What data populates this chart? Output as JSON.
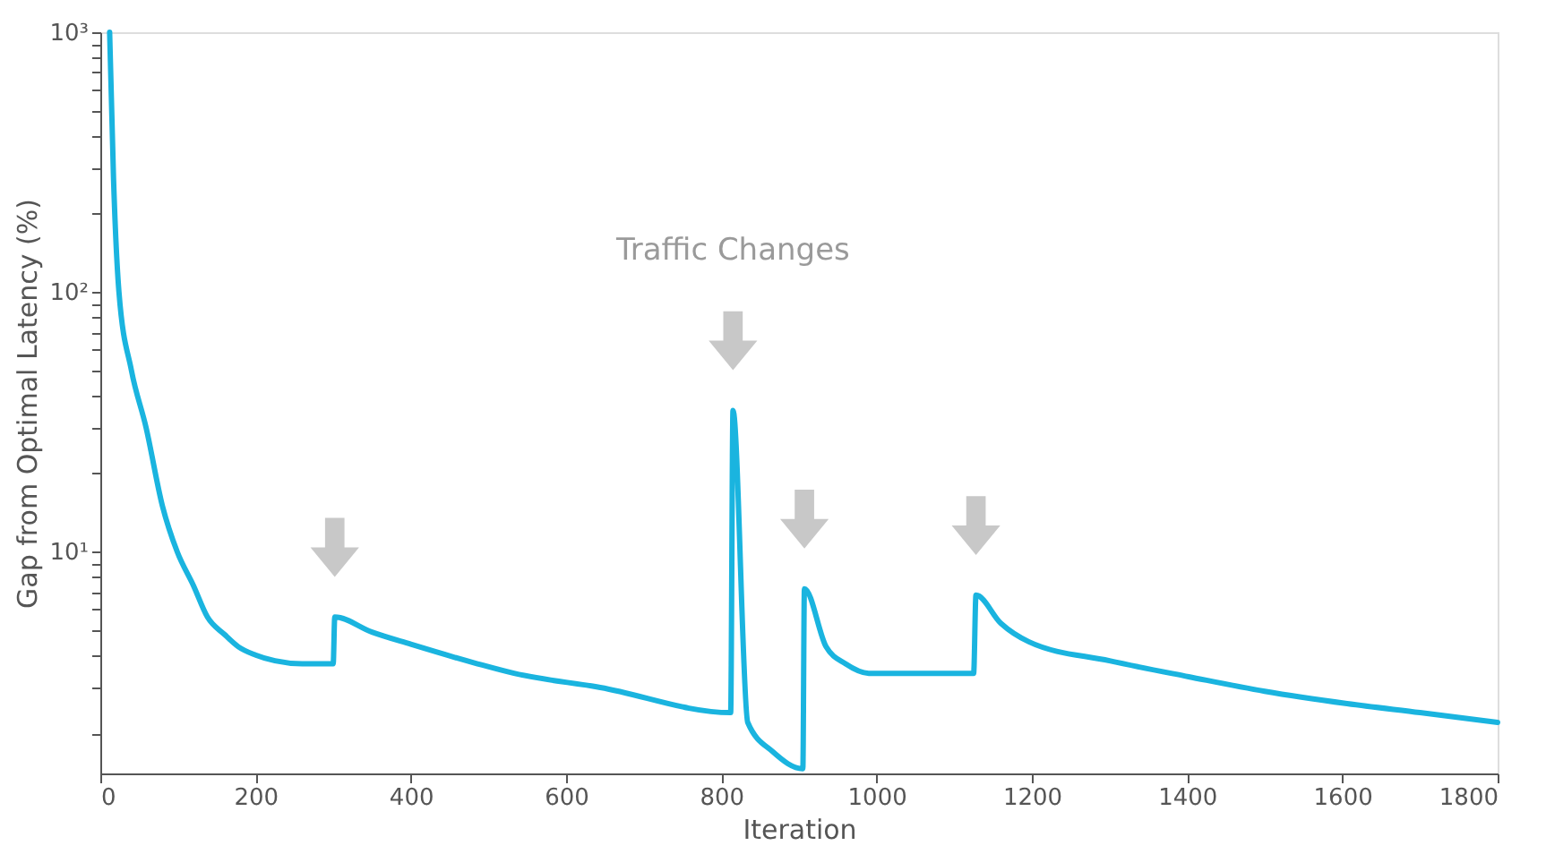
{
  "chart_data": {
    "type": "line",
    "xlabel": "Iteration",
    "ylabel": "Gap from Optimal Latency (%)",
    "series": [
      {
        "color": "#1ab4df",
        "x": [
          12,
          17,
          24,
          40,
          59,
          80,
          99,
          120,
          138,
          160,
          178,
          200,
          225,
          260,
          300,
          302,
          350,
          400,
          486,
          533,
          644,
          812,
          815,
          834,
          866,
          905,
          907,
          935,
          960,
          990,
          1125,
          1128,
          1160,
          1196,
          1300,
          1402,
          1500,
          1606,
          1700,
          1800
        ],
        "values": [
          1000,
          274,
          100,
          50,
          30,
          15,
          10,
          7.4,
          5.6,
          4.8,
          4.3,
          4.0,
          3.8,
          3.7,
          3.7,
          5.6,
          4.9,
          4.4,
          3.7,
          3.4,
          3.0,
          2.4,
          35,
          2.2,
          1.7,
          1.46,
          7.2,
          4.3,
          3.7,
          3.4,
          3.4,
          6.8,
          5.3,
          4.5,
          3.8,
          3.3,
          2.9,
          2.6,
          2.4,
          2.2
        ]
      }
    ],
    "annotations": [
      "Traffic Changes"
    ],
    "xlim": [
      0,
      1800
    ],
    "xticks": [
      0,
      200,
      400,
      600,
      800,
      1000,
      1200,
      1400,
      1600,
      1800
    ],
    "ylim": [
      1.4,
      1000
    ],
    "log": true,
    "yticks": [
      {
        "value": 2,
        "label": null
      },
      {
        "value": 3,
        "label": null
      },
      {
        "value": 4,
        "label": null
      },
      {
        "value": 5,
        "label": null
      },
      {
        "value": 6,
        "label": null
      },
      {
        "value": 7,
        "label": null
      },
      {
        "value": 8,
        "label": null
      },
      {
        "value": 9,
        "label": null
      },
      {
        "value": 10,
        "label": "10¹"
      },
      {
        "value": 20,
        "label": null
      },
      {
        "value": 30,
        "label": null
      },
      {
        "value": 40,
        "label": null
      },
      {
        "value": 50,
        "label": null
      },
      {
        "value": 60,
        "label": null
      },
      {
        "value": 70,
        "label": null
      },
      {
        "value": 80,
        "label": null
      },
      {
        "value": 90,
        "label": null
      },
      {
        "value": 100,
        "label": "10²"
      },
      {
        "value": 200,
        "label": null
      },
      {
        "value": 300,
        "label": null
      },
      {
        "value": 400,
        "label": null
      },
      {
        "value": 500,
        "label": null
      },
      {
        "value": 600,
        "label": null
      },
      {
        "value": 700,
        "label": null
      },
      {
        "value": 800,
        "label": null
      },
      {
        "value": 900,
        "label": null
      },
      {
        "value": 1000,
        "label": "10³"
      }
    ],
    "grid": false,
    "marker": "none",
    "line_style": "solid"
  }
}
